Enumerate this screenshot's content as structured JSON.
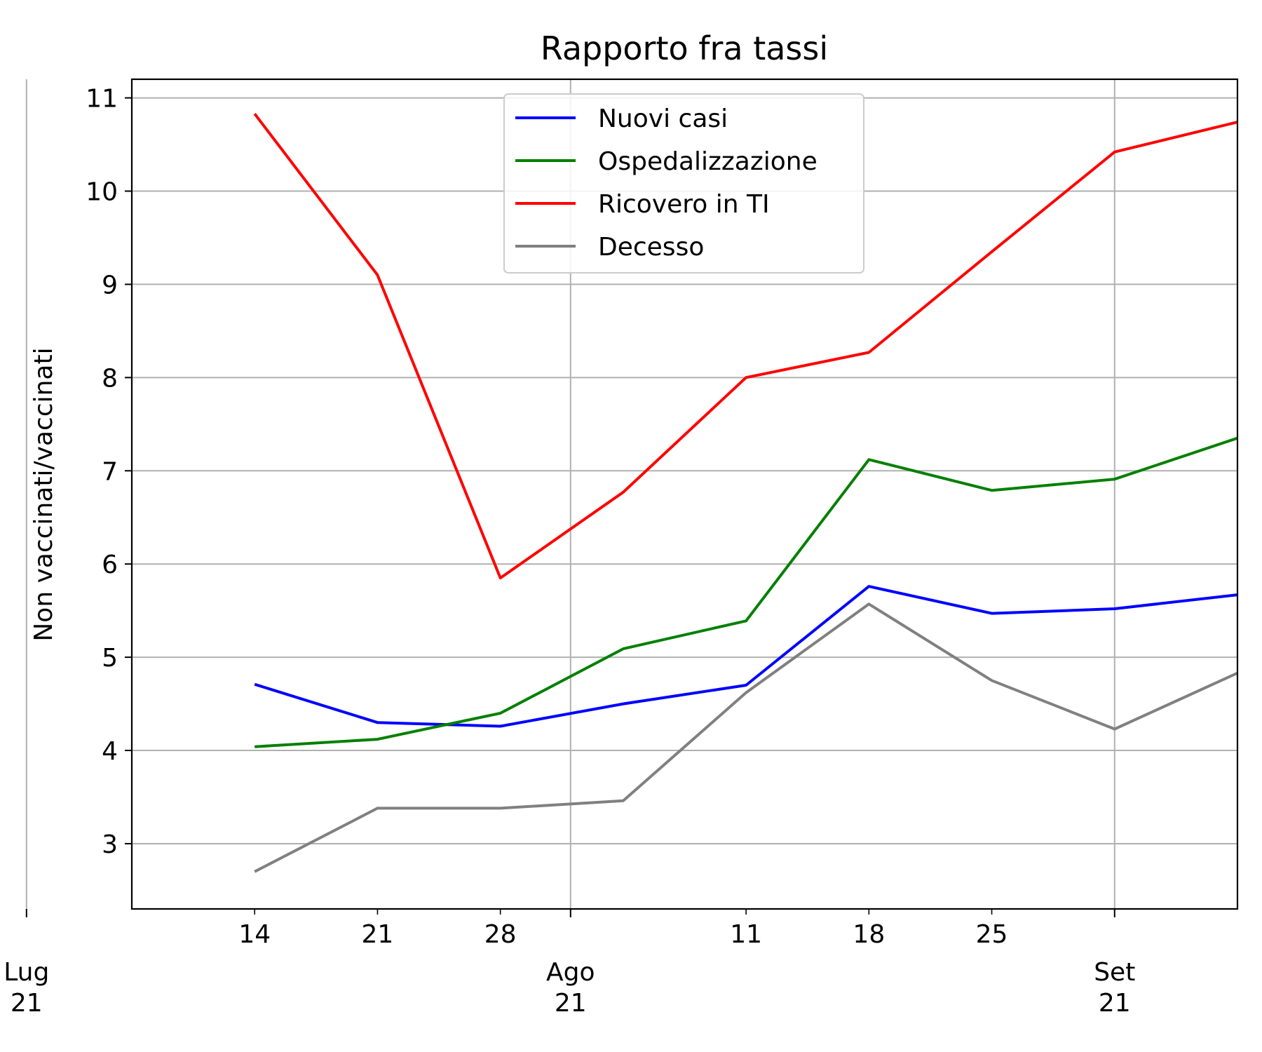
{
  "chart_data": {
    "type": "line",
    "title": "Rapporto fra tassi",
    "xlabel": "",
    "ylabel": "Non vaccinati/vaccinati",
    "x": [
      "2021-07-14",
      "2021-07-21",
      "2021-07-28",
      "2021-08-04",
      "2021-08-11",
      "2021-08-18",
      "2021-08-25",
      "2021-09-01",
      "2021-09-08"
    ],
    "xlim": [
      "2021-07-07",
      "2021-09-08"
    ],
    "ylim": [
      2.3,
      11.2
    ],
    "yticks": [
      3,
      4,
      5,
      6,
      7,
      8,
      9,
      10,
      11
    ],
    "xticks_minor": [
      {
        "date": "2021-07-14",
        "label": "14"
      },
      {
        "date": "2021-07-21",
        "label": "21"
      },
      {
        "date": "2021-07-28",
        "label": "28"
      },
      {
        "date": "2021-08-11",
        "label": "11"
      },
      {
        "date": "2021-08-18",
        "label": "18"
      },
      {
        "date": "2021-08-25",
        "label": "25"
      }
    ],
    "xticks_major": [
      {
        "date": "2021-07-01",
        "label_line1": "Lug",
        "label_line2": "21"
      },
      {
        "date": "2021-08-01",
        "label_line1": "Ago",
        "label_line2": "21"
      },
      {
        "date": "2021-09-01",
        "label_line1": "Set",
        "label_line2": "21"
      }
    ],
    "grid": true,
    "legend_position": "top-center",
    "series": [
      {
        "name": "Nuovi casi",
        "color": "#0000ff",
        "values": [
          4.71,
          4.3,
          4.26,
          4.5,
          4.7,
          5.76,
          5.47,
          5.52,
          5.67
        ]
      },
      {
        "name": "Ospedalizzazione",
        "color": "#008000",
        "values": [
          4.04,
          4.12,
          4.4,
          5.09,
          5.39,
          7.12,
          6.79,
          6.91,
          7.35
        ]
      },
      {
        "name": "Ricovero in TI",
        "color": "#ff0000",
        "values": [
          10.83,
          9.1,
          5.85,
          6.77,
          8.0,
          8.27,
          9.35,
          10.42,
          10.74
        ]
      },
      {
        "name": "Decesso",
        "color": "#808080",
        "values": [
          2.7,
          3.38,
          3.38,
          3.46,
          4.62,
          5.57,
          4.75,
          4.23,
          4.83
        ]
      }
    ]
  }
}
